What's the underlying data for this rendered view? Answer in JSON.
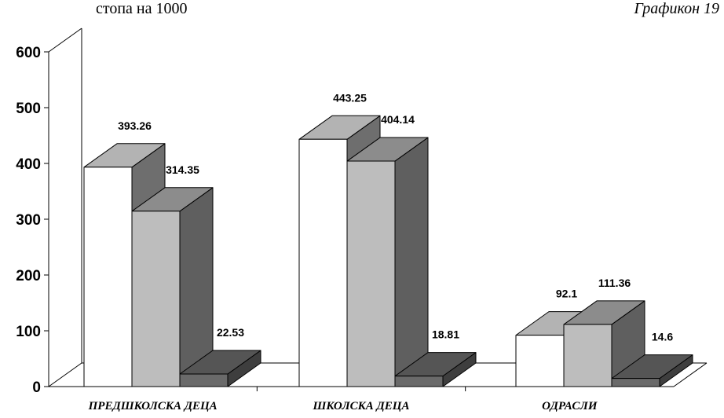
{
  "header": {
    "unit": "стопа на 1000",
    "figure": "Графикон 19"
  },
  "chart_data": {
    "type": "bar",
    "title": "",
    "xlabel": "",
    "ylabel": "стопа на 1000",
    "ylim": [
      0,
      600
    ],
    "yticks": [
      0,
      100,
      200,
      300,
      400,
      500,
      600
    ],
    "categories": [
      "ПРЕДШКОЛСКА ДЕЦА",
      "ШКОЛСКА ДЕЦА",
      "ОДРАСЛИ"
    ],
    "series": [
      {
        "values": [
          393.26,
          443.25,
          92.1
        ],
        "labels": [
          "393.26",
          "443.25",
          "92.1"
        ],
        "color": "#ffffff",
        "top_color": "#b3b3b3",
        "side_color": "#6e6e6e"
      },
      {
        "values": [
          314.35,
          404.14,
          111.36
        ],
        "labels": [
          "314.35",
          "404.14",
          "111.36"
        ],
        "color": "#bdbdbd",
        "top_color": "#8c8c8c",
        "side_color": "#5f5f5f"
      },
      {
        "values": [
          22.53,
          18.81,
          14.6
        ],
        "labels": [
          "22.53",
          "18.81",
          "14.6"
        ],
        "color": "#6a6a6a",
        "top_color": "#555555",
        "side_color": "#3e3e3e"
      }
    ],
    "style": "3d-clustered",
    "grid": false,
    "legend": "none"
  }
}
